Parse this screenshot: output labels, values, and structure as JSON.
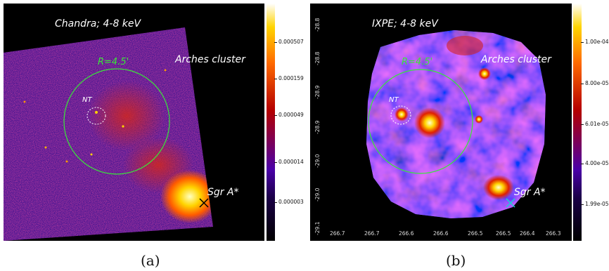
{
  "panel_a": {
    "title": "Chandra; 4-8 keV",
    "radius_label": "R=4.5'",
    "nt_label": "NT",
    "arches_label": "Arches cluster",
    "sgr_label": "Sgr A*",
    "colorbar_ticks": [
      "0.000507",
      "0.000159",
      "0.000049",
      "0.000014",
      "0.000003"
    ],
    "caption": "(a)"
  },
  "panel_b": {
    "title": "IXPE; 4-8 keV",
    "radius_label": "R=4.5'",
    "nt_label": "NT",
    "arches_label": "Arches cluster",
    "sgr_label": "Sgr A*",
    "colorbar_ticks": [
      "1.00e-04",
      "8.00e-05",
      "6.01e-05",
      "4.00e-05",
      "1.99e-05"
    ],
    "y_ticks": [
      "-28.8",
      "-28.8",
      "-28.9",
      "-28.9",
      "-29.0",
      "-29.0",
      "-29.1"
    ],
    "x_ticks": [
      "266.7",
      "266.7",
      "266.6",
      "266.6",
      "266.5",
      "266.5",
      "266.4",
      "266.3"
    ],
    "caption": "(b)"
  },
  "colors": {
    "circle": "#39e639",
    "sgr_marker_b": "#19d3d3"
  }
}
